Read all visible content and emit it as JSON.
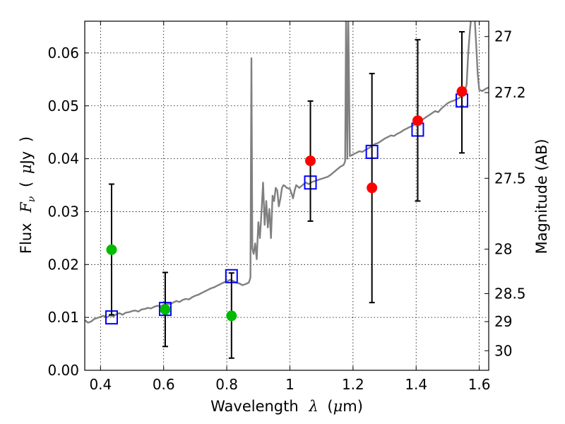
{
  "chart_data": {
    "type": "scatter",
    "title": "",
    "xlabel": {
      "prefix": "Wavelength",
      "symbol": "λ",
      "unit_open": "(",
      "unit_mu": "μ",
      "unit_rest": "m)"
    },
    "ylabel": {
      "prefix": "Flux",
      "symbol": "F",
      "symbol_sub": "ν",
      "unit_open": "(",
      "unit_mu": "μ",
      "unit_rest": "Jy",
      "unit_close": ")"
    },
    "y2label": "Magnitude (AB)",
    "xlim": [
      0.35,
      1.63
    ],
    "ylim": [
      0.0,
      0.066
    ],
    "grid": true,
    "xticks": [
      {
        "value": 0.4,
        "label": "0.4"
      },
      {
        "value": 0.6,
        "label": "0.6"
      },
      {
        "value": 0.8,
        "label": "0.8"
      },
      {
        "value": 1.0,
        "label": "1"
      },
      {
        "value": 1.2,
        "label": "1.2"
      },
      {
        "value": 1.4,
        "label": "1.4"
      },
      {
        "value": 1.6,
        "label": "1.6"
      }
    ],
    "yticks": [
      {
        "value": 0.0,
        "label": "0.00"
      },
      {
        "value": 0.01,
        "label": "0.01"
      },
      {
        "value": 0.02,
        "label": "0.02"
      },
      {
        "value": 0.03,
        "label": "0.03"
      },
      {
        "value": 0.04,
        "label": "0.04"
      },
      {
        "value": 0.05,
        "label": "0.05"
      },
      {
        "value": 0.06,
        "label": "0.06"
      }
    ],
    "y2ticks": [
      {
        "flux": 0.0631,
        "label": "27"
      },
      {
        "flux": 0.0525,
        "label": "27.2"
      },
      {
        "flux": 0.0363,
        "label": "27.5"
      },
      {
        "flux": 0.0229,
        "label": "28"
      },
      {
        "flux": 0.0145,
        "label": "28.5"
      },
      {
        "flux": 0.0092,
        "label": "29"
      },
      {
        "flux": 0.0037,
        "label": "30"
      }
    ],
    "series": [
      {
        "kind": "line",
        "color": "#808080",
        "points": [
          [
            0.35,
            0.0095
          ],
          [
            0.36,
            0.009
          ],
          [
            0.37,
            0.0092
          ],
          [
            0.38,
            0.0097
          ],
          [
            0.39,
            0.0099
          ],
          [
            0.4,
            0.0101
          ],
          [
            0.41,
            0.0103
          ],
          [
            0.42,
            0.01
          ],
          [
            0.43,
            0.0104
          ],
          [
            0.44,
            0.0102
          ],
          [
            0.45,
            0.0106
          ],
          [
            0.46,
            0.0108
          ],
          [
            0.47,
            0.0105
          ],
          [
            0.48,
            0.0109
          ],
          [
            0.49,
            0.011
          ],
          [
            0.5,
            0.0112
          ],
          [
            0.51,
            0.0113
          ],
          [
            0.52,
            0.0111
          ],
          [
            0.53,
            0.0115
          ],
          [
            0.54,
            0.0116
          ],
          [
            0.55,
            0.0118
          ],
          [
            0.56,
            0.0117
          ],
          [
            0.57,
            0.012
          ],
          [
            0.58,
            0.0122
          ],
          [
            0.59,
            0.0121
          ],
          [
            0.6,
            0.0124
          ],
          [
            0.61,
            0.0126
          ],
          [
            0.62,
            0.0125
          ],
          [
            0.63,
            0.0128
          ],
          [
            0.64,
            0.0131
          ],
          [
            0.65,
            0.0129
          ],
          [
            0.66,
            0.0133
          ],
          [
            0.67,
            0.0135
          ],
          [
            0.68,
            0.0134
          ],
          [
            0.69,
            0.0138
          ],
          [
            0.7,
            0.0141
          ],
          [
            0.71,
            0.0143
          ],
          [
            0.72,
            0.0146
          ],
          [
            0.73,
            0.0149
          ],
          [
            0.74,
            0.0152
          ],
          [
            0.75,
            0.0155
          ],
          [
            0.76,
            0.0157
          ],
          [
            0.77,
            0.016
          ],
          [
            0.78,
            0.0163
          ],
          [
            0.79,
            0.0166
          ],
          [
            0.8,
            0.0168
          ],
          [
            0.81,
            0.0171
          ],
          [
            0.82,
            0.0169
          ],
          [
            0.83,
            0.0166
          ],
          [
            0.84,
            0.0164
          ],
          [
            0.85,
            0.0161
          ],
          [
            0.86,
            0.0163
          ],
          [
            0.87,
            0.0166
          ],
          [
            0.875,
            0.0175
          ],
          [
            0.878,
            0.059
          ],
          [
            0.881,
            0.023
          ],
          [
            0.885,
            0.022
          ],
          [
            0.89,
            0.024
          ],
          [
            0.895,
            0.021
          ],
          [
            0.9,
            0.028
          ],
          [
            0.905,
            0.025
          ],
          [
            0.91,
            0.03
          ],
          [
            0.915,
            0.0355
          ],
          [
            0.92,
            0.0275
          ],
          [
            0.925,
            0.032
          ],
          [
            0.93,
            0.027
          ],
          [
            0.935,
            0.0305
          ],
          [
            0.94,
            0.025
          ],
          [
            0.945,
            0.033
          ],
          [
            0.95,
            0.032
          ],
          [
            0.955,
            0.0345
          ],
          [
            0.96,
            0.034
          ],
          [
            0.965,
            0.031
          ],
          [
            0.97,
            0.0325
          ],
          [
            0.975,
            0.0345
          ],
          [
            0.98,
            0.035
          ],
          [
            0.985,
            0.0348
          ],
          [
            0.99,
            0.0345
          ],
          [
            1.0,
            0.0343
          ],
          [
            1.005,
            0.0335
          ],
          [
            1.01,
            0.0325
          ],
          [
            1.015,
            0.034
          ],
          [
            1.02,
            0.035
          ],
          [
            1.03,
            0.0345
          ],
          [
            1.04,
            0.035
          ],
          [
            1.05,
            0.0355
          ],
          [
            1.06,
            0.0352
          ],
          [
            1.07,
            0.0356
          ],
          [
            1.08,
            0.0358
          ],
          [
            1.09,
            0.036
          ],
          [
            1.1,
            0.0362
          ],
          [
            1.11,
            0.0364
          ],
          [
            1.12,
            0.0366
          ],
          [
            1.13,
            0.037
          ],
          [
            1.14,
            0.0375
          ],
          [
            1.15,
            0.038
          ],
          [
            1.16,
            0.0385
          ],
          [
            1.17,
            0.0388
          ],
          [
            1.175,
            0.0395
          ],
          [
            1.178,
            0.067
          ],
          [
            1.182,
            0.04
          ],
          [
            1.185,
            0.067
          ],
          [
            1.19,
            0.0405
          ],
          [
            1.2,
            0.0408
          ],
          [
            1.21,
            0.0411
          ],
          [
            1.22,
            0.0414
          ],
          [
            1.23,
            0.0413
          ],
          [
            1.24,
            0.0417
          ],
          [
            1.25,
            0.042
          ],
          [
            1.26,
            0.0424
          ],
          [
            1.27,
            0.0428
          ],
          [
            1.28,
            0.043
          ],
          [
            1.29,
            0.0434
          ],
          [
            1.3,
            0.0438
          ],
          [
            1.31,
            0.0441
          ],
          [
            1.32,
            0.0444
          ],
          [
            1.33,
            0.0443
          ],
          [
            1.34,
            0.0447
          ],
          [
            1.35,
            0.045
          ],
          [
            1.36,
            0.0454
          ],
          [
            1.37,
            0.0457
          ],
          [
            1.38,
            0.046
          ],
          [
            1.39,
            0.0463
          ],
          [
            1.4,
            0.0466
          ],
          [
            1.41,
            0.047
          ],
          [
            1.42,
            0.0474
          ],
          [
            1.43,
            0.0478
          ],
          [
            1.44,
            0.0482
          ],
          [
            1.45,
            0.0486
          ],
          [
            1.46,
            0.049
          ],
          [
            1.47,
            0.0488
          ],
          [
            1.48,
            0.0495
          ],
          [
            1.49,
            0.05
          ],
          [
            1.5,
            0.0505
          ],
          [
            1.51,
            0.0508
          ],
          [
            1.52,
            0.051
          ],
          [
            1.53,
            0.0513
          ],
          [
            1.54,
            0.0516
          ],
          [
            1.55,
            0.052
          ],
          [
            1.56,
            0.054
          ],
          [
            1.565,
            0.06
          ],
          [
            1.57,
            0.064
          ],
          [
            1.575,
            0.067
          ],
          [
            1.585,
            0.067
          ],
          [
            1.59,
            0.062
          ],
          [
            1.595,
            0.056
          ],
          [
            1.6,
            0.053
          ],
          [
            1.61,
            0.0528
          ],
          [
            1.62,
            0.0532
          ],
          [
            1.63,
            0.0535
          ]
        ]
      },
      {
        "kind": "open-square",
        "color": "#0000ff",
        "x": [
          0.435,
          0.605,
          0.815,
          1.065,
          1.26,
          1.405,
          1.545
        ],
        "y": [
          0.01,
          0.0116,
          0.0178,
          0.0355,
          0.0413,
          0.0455,
          0.051
        ]
      },
      {
        "kind": "filled-circle",
        "color": "#00bb00",
        "x": [
          0.435,
          0.605,
          0.815
        ],
        "y": [
          0.0228,
          0.0115,
          0.0103
        ],
        "yerr": [
          [
            0.0105,
            0.0352
          ],
          [
            0.0045,
            0.0185
          ],
          [
            0.0023,
            0.0184
          ]
        ]
      },
      {
        "kind": "filled-circle",
        "color": "#ff0000",
        "x": [
          1.065,
          1.26,
          1.405,
          1.545
        ],
        "y": [
          0.0396,
          0.0345,
          0.0472,
          0.0527
        ],
        "yerr": [
          [
            0.0282,
            0.0509
          ],
          [
            0.0128,
            0.0561
          ],
          [
            0.032,
            0.0625
          ],
          [
            0.0411,
            0.064
          ]
        ]
      }
    ]
  }
}
